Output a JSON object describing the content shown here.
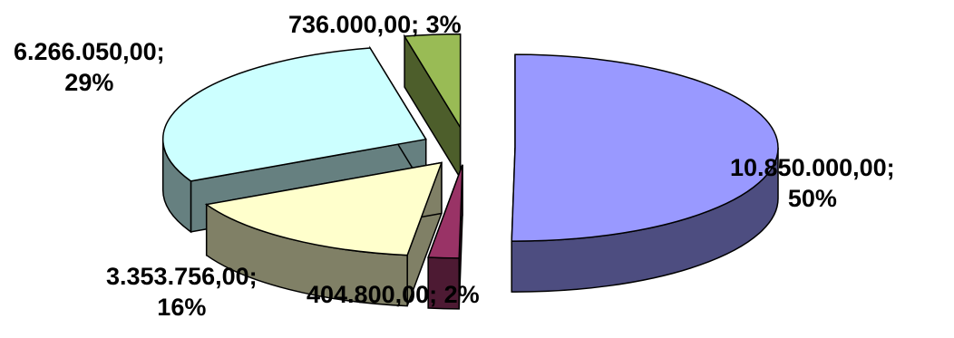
{
  "chart_data": {
    "type": "pie",
    "three_d": true,
    "exploded": true,
    "title": "",
    "legend": "none",
    "slices": [
      {
        "value": 10850000.0,
        "percent": 50,
        "value_label": "10.850.000,00;",
        "percent_label": "50%",
        "color": "#9999ff"
      },
      {
        "value": 404800.0,
        "percent": 2,
        "value_label": "404.800,00; 2%",
        "percent_label": "",
        "color": "#993366"
      },
      {
        "value": 3353756.0,
        "percent": 16,
        "value_label": "3.353.756,00;",
        "percent_label": "16%",
        "color": "#ffffcc"
      },
      {
        "value": 6266050.0,
        "percent": 29,
        "value_label": "6.266.050,00;",
        "percent_label": "29%",
        "color": "#ccffff"
      },
      {
        "value": 736000.0,
        "percent": 3,
        "value_label": "736.000,00; 3%",
        "percent_label": "",
        "color": "#99bb55"
      }
    ]
  }
}
